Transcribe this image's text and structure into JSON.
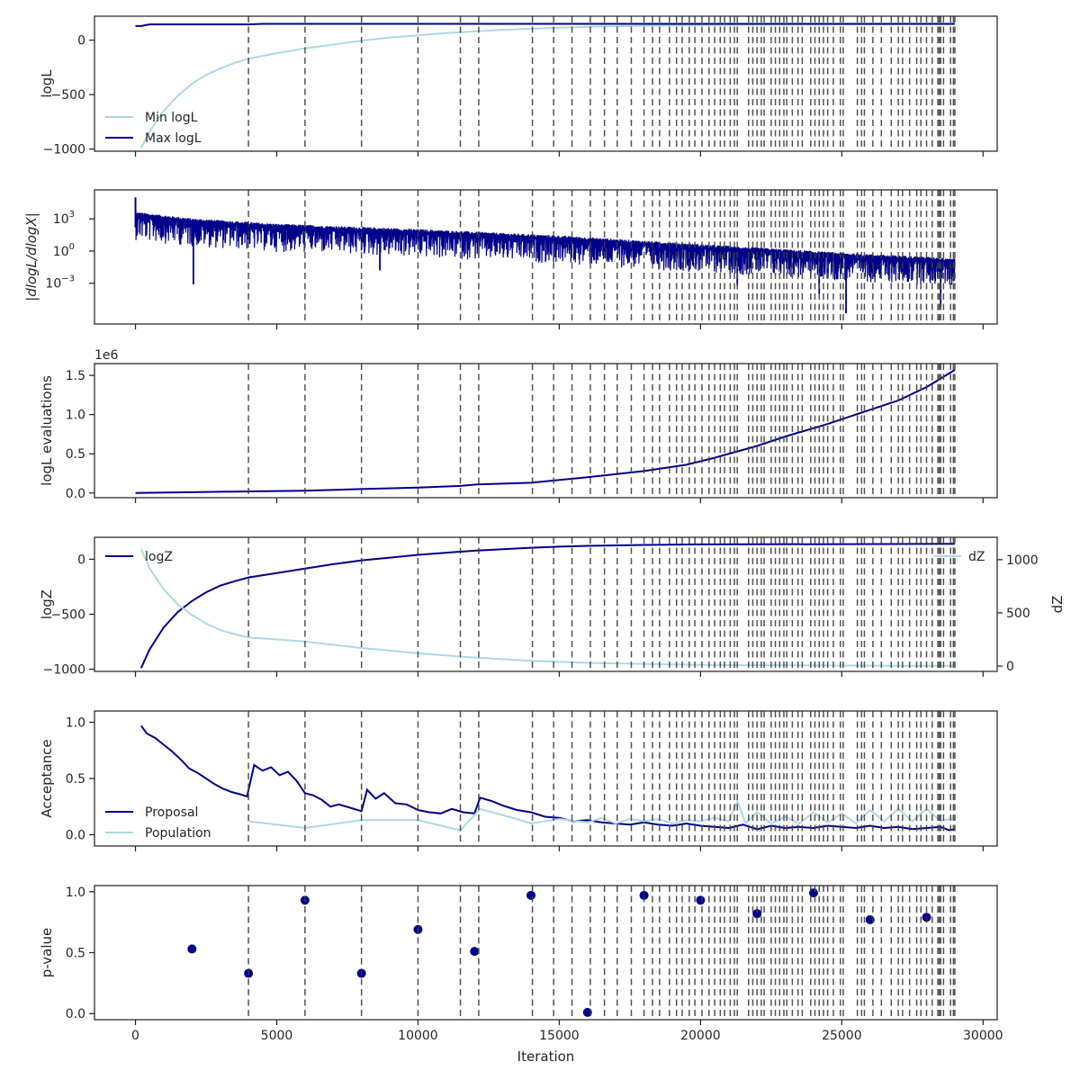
{
  "chart_data": [
    {
      "type": "line",
      "ylabel": "logL",
      "ylim": [
        -1020,
        220
      ],
      "yticks": [
        {
          "v": 0,
          "label": "0"
        },
        {
          "v": -500,
          "label": "−500"
        },
        {
          "v": -1000,
          "label": "−1000"
        }
      ],
      "legend": "lower-left",
      "series": [
        {
          "name": "Min logL",
          "color": "#add8e6",
          "x": [
            200,
            500,
            1000,
            1500,
            2000,
            2500,
            3000,
            3500,
            4000,
            5000,
            6000,
            7000,
            8000,
            9000,
            10000,
            11000,
            12000,
            13000,
            14000,
            15000,
            16000,
            17000,
            18000,
            20000,
            22000,
            25000,
            29000
          ],
          "y": [
            -990,
            -840,
            -650,
            -510,
            -400,
            -320,
            -260,
            -210,
            -170,
            -120,
            -75,
            -40,
            -5,
            25,
            45,
            65,
            80,
            95,
            105,
            115,
            122,
            128,
            132,
            138,
            142,
            145,
            147
          ]
        },
        {
          "name": "Max logL",
          "color": "#00008b",
          "x": [
            0,
            200,
            500,
            1000,
            4000,
            4500,
            6000,
            10000,
            15000,
            20000,
            29000
          ],
          "y": [
            130,
            130,
            145,
            145,
            145,
            150,
            150,
            150,
            150,
            150,
            150
          ]
        }
      ]
    },
    {
      "type": "line",
      "ylabel": "|dlogL/dlogX|",
      "yscale": "log",
      "ylim": [
        -6.8,
        5.7
      ],
      "ylim_note": "log10 units",
      "yticks": [
        {
          "v": 3,
          "label": "10",
          "exp": "3"
        },
        {
          "v": 0,
          "label": "10",
          "exp": "0"
        },
        {
          "v": -3,
          "label": "10",
          "exp": "−3"
        }
      ],
      "series": [
        {
          "name": "",
          "color": "#00008b",
          "trend_x": [
            0,
            2000,
            5000,
            10000,
            15000,
            20000,
            25000,
            29000
          ],
          "trend_y_log10": [
            3.2,
            2.6,
            2.1,
            1.6,
            1.0,
            0.2,
            -0.6,
            -1.1
          ],
          "spread_log10": 2.2,
          "spikes": [
            {
              "x": 2050,
              "y": -3.1
            },
            {
              "x": 25150,
              "y": -5.8
            },
            {
              "x": 28500,
              "y": -5.2
            },
            {
              "x": 8650,
              "y": -1.8
            },
            {
              "x": 21300,
              "y": -3.2
            },
            {
              "x": 24200,
              "y": -4.0
            }
          ]
        }
      ]
    },
    {
      "type": "line",
      "ylabel": "logL evaluations",
      "offset_text": "1e6",
      "ylim": [
        -0.06,
        1.65
      ],
      "yticks": [
        {
          "v": 0,
          "label": "0.0"
        },
        {
          "v": 0.5,
          "label": "0.5"
        },
        {
          "v": 1.0,
          "label": "1.0"
        },
        {
          "v": 1.5,
          "label": "1.5"
        }
      ],
      "series": [
        {
          "name": "",
          "color": "#00008b",
          "x": [
            0,
            2000,
            4000,
            6000,
            8000,
            10000,
            11500,
            12100,
            14000,
            16000,
            18000,
            19500,
            20500,
            22000,
            23000,
            24500,
            25500,
            27000,
            28000,
            29000
          ],
          "y": [
            0.0,
            0.01,
            0.02,
            0.03,
            0.05,
            0.07,
            0.09,
            0.11,
            0.13,
            0.2,
            0.28,
            0.36,
            0.45,
            0.6,
            0.72,
            0.88,
            1.0,
            1.18,
            1.35,
            1.57
          ]
        }
      ]
    },
    {
      "type": "line",
      "ylabel": "logZ",
      "ylabel_right": "dZ",
      "ylim": [
        -1020,
        200
      ],
      "ylim_right": [
        -50,
        1210
      ],
      "yticks": [
        {
          "v": 0,
          "label": "0"
        },
        {
          "v": -500,
          "label": "−500"
        },
        {
          "v": -1000,
          "label": "−1000"
        }
      ],
      "yticks_right": [
        {
          "v": 1000,
          "label": "1000"
        },
        {
          "v": 500,
          "label": "500"
        },
        {
          "v": 0,
          "label": "0"
        }
      ],
      "legend": "upper-left",
      "legend_right": "upper-right",
      "series": [
        {
          "name": "logZ",
          "axis": "left",
          "color": "#00008b",
          "x": [
            200,
            500,
            1000,
            1500,
            2000,
            2500,
            3000,
            3500,
            4000,
            5000,
            6000,
            7000,
            8000,
            9000,
            10000,
            11000,
            12000,
            13000,
            14000,
            15000,
            16000,
            18000,
            20000,
            25000,
            29000
          ],
          "y": [
            -990,
            -820,
            -620,
            -480,
            -380,
            -300,
            -240,
            -200,
            -165,
            -125,
            -85,
            -45,
            -10,
            15,
            40,
            60,
            78,
            92,
            105,
            115,
            122,
            130,
            135,
            138,
            140
          ]
        },
        {
          "name": "dZ",
          "axis": "right",
          "color": "#add8e6",
          "x": [
            200,
            500,
            1000,
            1500,
            2000,
            2500,
            3000,
            3500,
            4000,
            5000,
            6000,
            7000,
            8000,
            9000,
            10000,
            11000,
            12000,
            13000,
            14000,
            15000,
            16000,
            18000,
            20000,
            25000,
            29000
          ],
          "y": [
            1100,
            920,
            720,
            580,
            480,
            400,
            340,
            300,
            270,
            250,
            230,
            200,
            170,
            145,
            120,
            100,
            80,
            65,
            50,
            40,
            30,
            20,
            12,
            5,
            2
          ]
        }
      ]
    },
    {
      "type": "line",
      "ylabel": "Acceptance",
      "ylim": [
        -0.1,
        1.1
      ],
      "yticks": [
        {
          "v": 0,
          "label": "0.0"
        },
        {
          "v": 0.5,
          "label": "0.5"
        },
        {
          "v": 1.0,
          "label": "1.0"
        }
      ],
      "legend": "lower-left",
      "series": [
        {
          "name": "Proposal",
          "color": "#00008b",
          "x": [
            200,
            400,
            700,
            1000,
            1300,
            1600,
            1900,
            2200,
            2500,
            2800,
            3100,
            3400,
            3700,
            3950,
            4200,
            4500,
            4800,
            5100,
            5400,
            5700,
            6000,
            6300,
            6600,
            6900,
            7200,
            7600,
            8000,
            8200,
            8500,
            8800,
            9200,
            9600,
            10000,
            10400,
            10800,
            11200,
            11600,
            12000,
            12200,
            12600,
            13000,
            13500,
            14000,
            14500,
            15000,
            15500,
            16000,
            16500,
            17000,
            17500,
            18000,
            18500,
            19000,
            19500,
            20000,
            20500,
            21000,
            21500,
            22000,
            22500,
            23000,
            23500,
            24000,
            24500,
            25000,
            25500,
            26000,
            26500,
            27000,
            27500,
            28000,
            28500,
            28800,
            29000
          ],
          "y": [
            0.97,
            0.9,
            0.86,
            0.8,
            0.74,
            0.67,
            0.59,
            0.55,
            0.5,
            0.45,
            0.41,
            0.38,
            0.36,
            0.34,
            0.62,
            0.57,
            0.6,
            0.53,
            0.56,
            0.48,
            0.37,
            0.35,
            0.31,
            0.25,
            0.27,
            0.24,
            0.21,
            0.4,
            0.32,
            0.37,
            0.28,
            0.27,
            0.22,
            0.2,
            0.19,
            0.23,
            0.2,
            0.19,
            0.33,
            0.3,
            0.26,
            0.22,
            0.2,
            0.16,
            0.15,
            0.12,
            0.13,
            0.11,
            0.1,
            0.09,
            0.11,
            0.09,
            0.08,
            0.1,
            0.08,
            0.07,
            0.06,
            0.09,
            0.05,
            0.08,
            0.06,
            0.07,
            0.06,
            0.08,
            0.07,
            0.06,
            0.08,
            0.06,
            0.07,
            0.05,
            0.06,
            0.07,
            0.04,
            0.05
          ]
        },
        {
          "name": "Population",
          "color": "#add8e6",
          "x": [
            4000,
            6000,
            8000,
            10000,
            11500,
            12200,
            13500,
            14000,
            15000,
            16000,
            16500,
            17000,
            17500,
            18000,
            18500,
            19000,
            19500,
            20000,
            20500,
            21000,
            21300,
            21600,
            22000,
            22500,
            23000,
            23500,
            24000,
            24500,
            25000,
            25500,
            26000,
            26500,
            27000,
            27500,
            28000,
            28500,
            29000
          ],
          "y": [
            0.12,
            0.06,
            0.13,
            0.13,
            0.04,
            0.23,
            0.14,
            0.1,
            0.14,
            0.11,
            0.15,
            0.1,
            0.14,
            0.12,
            0.14,
            0.1,
            0.13,
            0.12,
            0.15,
            0.12,
            0.3,
            0.1,
            0.2,
            0.1,
            0.16,
            0.1,
            0.2,
            0.11,
            0.19,
            0.1,
            0.22,
            0.12,
            0.23,
            0.12,
            0.23,
            0.12,
            0.15
          ]
        }
      ]
    },
    {
      "type": "scatter",
      "ylabel": "p-value",
      "xlabel": "Iteration",
      "ylim": [
        -0.05,
        1.05
      ],
      "yticks": [
        {
          "v": 0,
          "label": "0.0"
        },
        {
          "v": 0.5,
          "label": "0.5"
        },
        {
          "v": 1.0,
          "label": "1.0"
        }
      ],
      "series": [
        {
          "name": "",
          "color": "#00008b",
          "x": [
            2000,
            4000,
            6000,
            8000,
            10000,
            12000,
            14000,
            16000,
            18000,
            20000,
            22000,
            24000,
            26000,
            28000
          ],
          "y": [
            0.53,
            0.33,
            0.93,
            0.33,
            0.69,
            0.51,
            0.97,
            0.01,
            0.97,
            0.93,
            0.82,
            0.99,
            0.77,
            0.79
          ]
        }
      ]
    }
  ],
  "xaxis": {
    "xlim": [
      -1450,
      30500
    ],
    "xticks": [
      {
        "v": 0,
        "label": "0"
      },
      {
        "v": 5000,
        "label": "5000"
      },
      {
        "v": 10000,
        "label": "10000"
      },
      {
        "v": 15000,
        "label": "15000"
      },
      {
        "v": 20000,
        "label": "20000"
      },
      {
        "v": 25000,
        "label": "25000"
      },
      {
        "v": 30000,
        "label": "30000"
      }
    ],
    "xlabel": "Iteration"
  },
  "insertion_lines": [
    4000,
    6000,
    8000,
    10000,
    11500,
    12150,
    14050,
    14800,
    15450,
    16100,
    16600,
    17050,
    17550,
    18000,
    18300,
    18550,
    18900,
    19150,
    19350,
    19600,
    19800,
    20050,
    20300,
    20500,
    20700,
    20850,
    21050,
    21200,
    21300,
    21700,
    21850,
    22000,
    22150,
    22250,
    22500,
    22650,
    22800,
    22950,
    23050,
    23250,
    23450,
    23600,
    23900,
    24050,
    24200,
    24350,
    24500,
    24700,
    24950,
    25050,
    25550,
    25700,
    25800,
    26100,
    26400,
    26750,
    27000,
    27150,
    27400,
    27650,
    27800,
    28000,
    28200,
    28400,
    28450,
    28500,
    28600,
    28850,
    28950,
    29000
  ]
}
